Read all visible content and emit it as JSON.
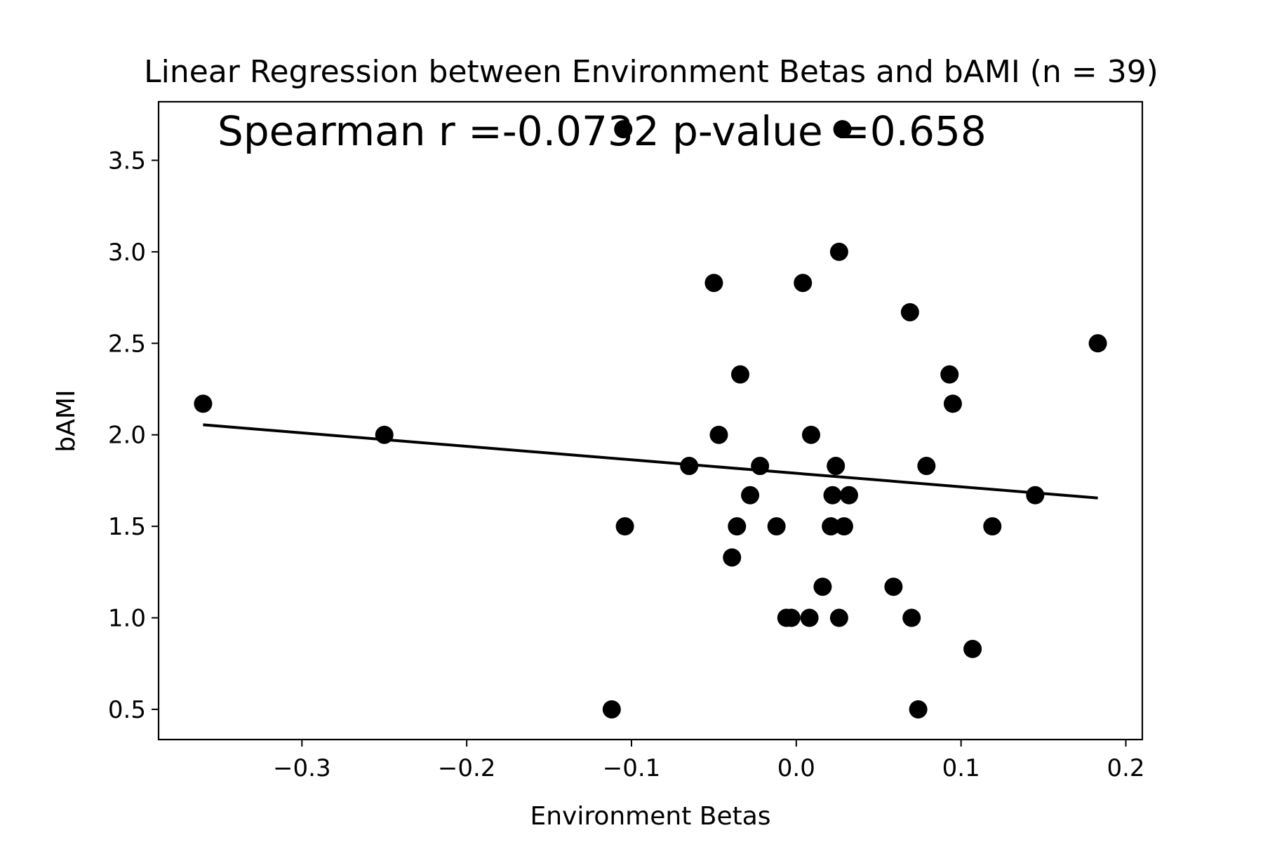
{
  "chart_data": {
    "type": "scatter",
    "title": "Linear Regression between Environment Betas and bAMI (n = 39)",
    "annotation": "Spearman r =-0.0732 p-value =0.658",
    "xlabel": "Environment Betas",
    "ylabel": "bAMI",
    "xlim": [
      -0.387,
      0.21
    ],
    "ylim": [
      0.335,
      3.82
    ],
    "xticks": [
      -0.3,
      -0.2,
      -0.1,
      0.0,
      0.1,
      0.2
    ],
    "xtick_labels": [
      "−0.3",
      "−0.2",
      "−0.1",
      "0.0",
      "0.1",
      "0.2"
    ],
    "yticks": [
      0.5,
      1.0,
      1.5,
      2.0,
      2.5,
      3.0,
      3.5
    ],
    "ytick_labels": [
      "0.5",
      "1.0",
      "1.5",
      "2.0",
      "2.5",
      "3.0",
      "3.5"
    ],
    "grid": false,
    "points": [
      {
        "x": -0.36,
        "y": 2.17
      },
      {
        "x": -0.25,
        "y": 2.0
      },
      {
        "x": -0.112,
        "y": 0.5
      },
      {
        "x": -0.105,
        "y": 3.67
      },
      {
        "x": -0.104,
        "y": 1.5
      },
      {
        "x": -0.065,
        "y": 1.83
      },
      {
        "x": -0.05,
        "y": 2.83
      },
      {
        "x": -0.047,
        "y": 2.0
      },
      {
        "x": -0.039,
        "y": 1.33
      },
      {
        "x": -0.036,
        "y": 1.5
      },
      {
        "x": -0.034,
        "y": 2.33
      },
      {
        "x": -0.028,
        "y": 1.67
      },
      {
        "x": -0.022,
        "y": 1.83
      },
      {
        "x": -0.012,
        "y": 1.5
      },
      {
        "x": -0.006,
        "y": 1.0
      },
      {
        "x": -0.003,
        "y": 1.0
      },
      {
        "x": 0.004,
        "y": 2.83
      },
      {
        "x": 0.008,
        "y": 1.0
      },
      {
        "x": 0.009,
        "y": 2.0
      },
      {
        "x": 0.016,
        "y": 1.17
      },
      {
        "x": 0.021,
        "y": 1.5
      },
      {
        "x": 0.022,
        "y": 1.67
      },
      {
        "x": 0.024,
        "y": 1.83
      },
      {
        "x": 0.026,
        "y": 3.0
      },
      {
        "x": 0.026,
        "y": 1.0
      },
      {
        "x": 0.028,
        "y": 3.67
      },
      {
        "x": 0.029,
        "y": 1.5
      },
      {
        "x": 0.032,
        "y": 1.67
      },
      {
        "x": 0.059,
        "y": 1.17
      },
      {
        "x": 0.069,
        "y": 2.67
      },
      {
        "x": 0.07,
        "y": 1.0
      },
      {
        "x": 0.074,
        "y": 0.5
      },
      {
        "x": 0.079,
        "y": 1.83
      },
      {
        "x": 0.093,
        "y": 2.33
      },
      {
        "x": 0.095,
        "y": 2.17
      },
      {
        "x": 0.107,
        "y": 0.83
      },
      {
        "x": 0.119,
        "y": 1.5
      },
      {
        "x": 0.145,
        "y": 1.67
      },
      {
        "x": 0.183,
        "y": 2.5
      }
    ],
    "regression_line": {
      "x": [
        -0.36,
        0.183
      ],
      "y": [
        2.055,
        1.655
      ]
    },
    "colors": {
      "points": "#000000",
      "line": "#000000",
      "axes": "#000000"
    }
  }
}
